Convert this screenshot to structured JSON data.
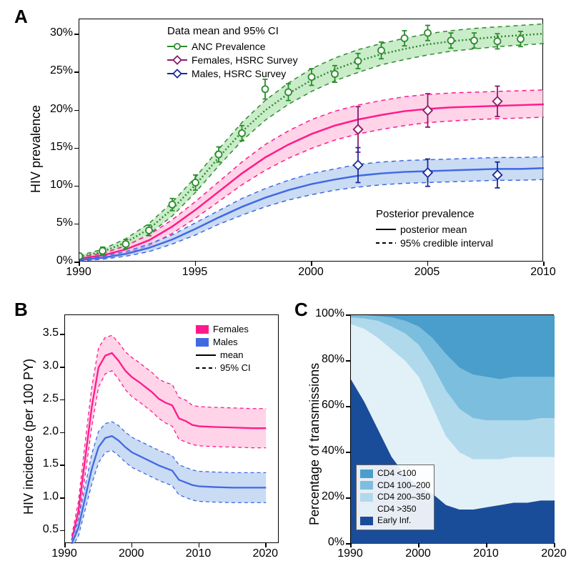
{
  "panels": {
    "A_label": "A",
    "B_label": "B",
    "C_label": "C"
  },
  "colors": {
    "green": "#2e8b2e",
    "green_band": "#a5dfa5",
    "pink": "#ff1a8c",
    "pink_band": "#ffb8d9",
    "blue": "#4169e1",
    "blue_band": "#a6c3ec",
    "cd4_lt100": "#4a9ecb",
    "cd4_100_200": "#7cbedd",
    "cd4_200_350": "#b1d9ec",
    "cd4_gt350": "#e2f1f8",
    "early": "#1a4d99",
    "black": "#000000"
  },
  "panelA": {
    "xlim": [
      1990,
      2010
    ],
    "ylim": [
      0,
      32
    ],
    "xticks": [
      1990,
      1995,
      2000,
      2005,
      2010
    ],
    "xtick_labels": [
      "1990",
      "1995",
      "2000",
      "2005",
      "2010"
    ],
    "yticks": [
      0,
      5,
      10,
      15,
      20,
      25,
      30
    ],
    "ytick_labels": [
      "0%",
      "5%",
      "10%",
      "15%",
      "20%",
      "25%",
      "30%"
    ],
    "ylabel": "HIV prevalence",
    "legend_top_title": "Data mean and 95% CI",
    "legend_anc": "ANC Prevalence",
    "legend_fhs": "Females, HSRC Survey",
    "legend_mhs": "Males, HSRC Survey",
    "legend_post_title": "Posterior prevalence",
    "legend_post_mean": "posterior mean",
    "legend_post_ci": "95% credible interval",
    "anc_data": [
      {
        "x": 1990,
        "y": 0.8,
        "lo": 0.4,
        "hi": 1.2
      },
      {
        "x": 1991,
        "y": 1.5,
        "lo": 1.0,
        "hi": 2.0
      },
      {
        "x": 1992,
        "y": 2.4,
        "lo": 1.8,
        "hi": 3.0
      },
      {
        "x": 1993,
        "y": 4.2,
        "lo": 3.5,
        "hi": 4.9
      },
      {
        "x": 1994,
        "y": 7.6,
        "lo": 6.8,
        "hi": 8.4
      },
      {
        "x": 1995,
        "y": 10.5,
        "lo": 9.5,
        "hi": 11.5
      },
      {
        "x": 1996,
        "y": 14.2,
        "lo": 13.2,
        "hi": 15.2
      },
      {
        "x": 1997,
        "y": 17.0,
        "lo": 16.0,
        "hi": 18.0
      },
      {
        "x": 1998,
        "y": 22.8,
        "lo": 21.5,
        "hi": 24.1
      },
      {
        "x": 1999,
        "y": 22.4,
        "lo": 21.3,
        "hi": 23.5
      },
      {
        "x": 2000,
        "y": 24.4,
        "lo": 23.3,
        "hi": 25.5
      },
      {
        "x": 2001,
        "y": 24.8,
        "lo": 23.7,
        "hi": 25.9
      },
      {
        "x": 2002,
        "y": 26.5,
        "lo": 25.5,
        "hi": 27.5
      },
      {
        "x": 2003,
        "y": 27.9,
        "lo": 26.8,
        "hi": 29.0
      },
      {
        "x": 2004,
        "y": 29.5,
        "lo": 28.5,
        "hi": 30.5
      },
      {
        "x": 2005,
        "y": 30.2,
        "lo": 29.2,
        "hi": 31.2
      },
      {
        "x": 2006,
        "y": 29.2,
        "lo": 28.2,
        "hi": 30.2
      },
      {
        "x": 2007,
        "y": 29.2,
        "lo": 28.2,
        "hi": 30.2
      },
      {
        "x": 2008,
        "y": 29.1,
        "lo": 28.1,
        "hi": 30.1
      },
      {
        "x": 2009,
        "y": 29.4,
        "lo": 28.4,
        "hi": 30.4
      }
    ],
    "fhs_data": [
      {
        "x": 2002,
        "y": 17.5,
        "lo": 14.5,
        "hi": 20.5
      },
      {
        "x": 2005,
        "y": 20.0,
        "lo": 17.8,
        "hi": 22.2
      },
      {
        "x": 2008,
        "y": 21.2,
        "lo": 19.2,
        "hi": 23.2
      }
    ],
    "mhs_data": [
      {
        "x": 2002,
        "y": 12.8,
        "lo": 10.5,
        "hi": 15.1
      },
      {
        "x": 2005,
        "y": 11.8,
        "lo": 10.0,
        "hi": 13.6
      },
      {
        "x": 2008,
        "y": 11.5,
        "lo": 9.8,
        "hi": 13.2
      }
    ],
    "anc_curve": {
      "years": [
        1990,
        1991,
        1992,
        1993,
        1994,
        1995,
        1996,
        1997,
        1998,
        1999,
        2000,
        2001,
        2002,
        2003,
        2004,
        2005,
        2006,
        2007,
        2008,
        2009,
        2010
      ],
      "mean": [
        0.7,
        1.4,
        2.6,
        4.4,
        7.0,
        10.2,
        13.8,
        17.2,
        20.0,
        22.2,
        24.0,
        25.4,
        26.5,
        27.4,
        28.1,
        28.7,
        29.1,
        29.4,
        29.7,
        29.9,
        30.1
      ],
      "lo": [
        0.5,
        1.1,
        2.1,
        3.7,
        6.1,
        9.2,
        12.7,
        16.0,
        18.7,
        20.8,
        22.5,
        23.9,
        25.0,
        26.0,
        26.7,
        27.3,
        27.8,
        28.1,
        28.4,
        28.6,
        28.8
      ],
      "hi": [
        0.9,
        1.7,
        3.1,
        5.1,
        7.9,
        11.2,
        14.9,
        18.4,
        21.3,
        23.6,
        25.5,
        26.9,
        28.0,
        28.8,
        29.5,
        30.1,
        30.5,
        30.8,
        31.0,
        31.2,
        31.4
      ]
    },
    "fem_curve": {
      "years": [
        1990,
        1991,
        1992,
        1993,
        1994,
        1995,
        1996,
        1997,
        1998,
        1999,
        2000,
        2001,
        2002,
        2003,
        2004,
        2005,
        2006,
        2007,
        2008,
        2009,
        2010
      ],
      "mean": [
        0.5,
        0.9,
        1.7,
        2.9,
        4.7,
        6.9,
        9.3,
        11.7,
        13.8,
        15.5,
        16.9,
        18.0,
        18.8,
        19.4,
        19.9,
        20.2,
        20.4,
        20.5,
        20.6,
        20.7,
        20.8
      ],
      "lo": [
        0.3,
        0.6,
        1.2,
        2.2,
        3.8,
        5.8,
        8.0,
        10.2,
        12.1,
        13.7,
        15.0,
        16.1,
        16.9,
        17.5,
        18.0,
        18.4,
        18.6,
        18.8,
        18.9,
        19.0,
        19.1
      ],
      "hi": [
        0.7,
        1.2,
        2.2,
        3.6,
        5.6,
        8.0,
        10.6,
        13.2,
        15.5,
        17.3,
        18.8,
        19.9,
        20.7,
        21.3,
        21.8,
        22.1,
        22.3,
        22.4,
        22.5,
        22.6,
        22.7
      ]
    },
    "mal_curve": {
      "years": [
        1990,
        1991,
        1992,
        1993,
        1994,
        1995,
        1996,
        1997,
        1998,
        1999,
        2000,
        2001,
        2002,
        2003,
        2004,
        2005,
        2006,
        2007,
        2008,
        2009,
        2010
      ],
      "mean": [
        0.3,
        0.6,
        1.1,
        1.9,
        3.0,
        4.4,
        5.9,
        7.3,
        8.5,
        9.5,
        10.3,
        10.9,
        11.4,
        11.7,
        11.9,
        12.0,
        12.1,
        12.2,
        12.3,
        12.3,
        12.4
      ],
      "lo": [
        0.2,
        0.4,
        0.8,
        1.4,
        2.4,
        3.6,
        5.0,
        6.2,
        7.3,
        8.2,
        8.9,
        9.5,
        9.9,
        10.2,
        10.4,
        10.5,
        10.6,
        10.7,
        10.8,
        10.8,
        10.9
      ],
      "hi": [
        0.4,
        0.8,
        1.4,
        2.4,
        3.6,
        5.2,
        6.8,
        8.4,
        9.7,
        10.8,
        11.7,
        12.3,
        12.9,
        13.2,
        13.4,
        13.5,
        13.6,
        13.7,
        13.8,
        13.8,
        13.9
      ]
    }
  },
  "panelB": {
    "xlim": [
      1990,
      2022
    ],
    "ylim": [
      0.3,
      3.8
    ],
    "xticks": [
      1990,
      2000,
      2010,
      2020
    ],
    "xtick_labels": [
      "1990",
      "2000",
      "2010",
      "2020"
    ],
    "yticks": [
      0.5,
      1.0,
      1.5,
      2.0,
      2.5,
      3.0,
      3.5
    ],
    "ytick_labels": [
      "0.5",
      "1.0",
      "1.5",
      "2.0",
      "2.5",
      "3.0",
      "3.5"
    ],
    "ylabel": "HIV incidence (per 100 PY)",
    "legend_fem": "Females",
    "legend_mal": "Males",
    "legend_mean": "mean",
    "legend_ci": "95% CI",
    "fem": {
      "years": [
        1991,
        1992,
        1993,
        1994,
        1995,
        1996,
        1997,
        1998,
        1999,
        2000,
        2001,
        2002,
        2003,
        2004,
        2005,
        2006,
        2007,
        2008,
        2009,
        2010,
        2012,
        2015,
        2018,
        2020
      ],
      "mean": [
        0.35,
        0.8,
        1.6,
        2.4,
        3.0,
        3.18,
        3.22,
        3.1,
        2.95,
        2.85,
        2.78,
        2.7,
        2.62,
        2.52,
        2.46,
        2.42,
        2.22,
        2.18,
        2.12,
        2.1,
        2.09,
        2.08,
        2.07,
        2.07
      ],
      "lo": [
        0.28,
        0.65,
        1.35,
        2.1,
        2.7,
        2.9,
        2.95,
        2.82,
        2.66,
        2.55,
        2.48,
        2.4,
        2.32,
        2.22,
        2.15,
        2.1,
        1.9,
        1.86,
        1.82,
        1.8,
        1.79,
        1.78,
        1.77,
        1.77
      ],
      "hi": [
        0.42,
        0.95,
        1.85,
        2.7,
        3.3,
        3.46,
        3.49,
        3.38,
        3.24,
        3.15,
        3.08,
        3.0,
        2.92,
        2.82,
        2.77,
        2.74,
        2.54,
        2.5,
        2.42,
        2.4,
        2.39,
        2.38,
        2.37,
        2.37
      ]
    },
    "mal": {
      "years": [
        1991,
        1992,
        1993,
        1994,
        1995,
        1996,
        1997,
        1998,
        1999,
        2000,
        2001,
        2002,
        2003,
        2004,
        2005,
        2006,
        2007,
        2008,
        2009,
        2010,
        2012,
        2015,
        2018,
        2020
      ],
      "mean": [
        0.3,
        0.55,
        1.0,
        1.45,
        1.78,
        1.92,
        1.95,
        1.88,
        1.78,
        1.7,
        1.65,
        1.6,
        1.55,
        1.5,
        1.46,
        1.42,
        1.28,
        1.24,
        1.2,
        1.18,
        1.17,
        1.16,
        1.16,
        1.16
      ],
      "lo": [
        0.24,
        0.42,
        0.82,
        1.22,
        1.54,
        1.7,
        1.73,
        1.65,
        1.55,
        1.47,
        1.42,
        1.37,
        1.32,
        1.27,
        1.23,
        1.19,
        1.05,
        1.01,
        0.97,
        0.95,
        0.94,
        0.93,
        0.93,
        0.93
      ],
      "hi": [
        0.36,
        0.68,
        1.18,
        1.68,
        2.02,
        2.14,
        2.17,
        2.11,
        2.01,
        1.93,
        1.88,
        1.83,
        1.78,
        1.73,
        1.69,
        1.65,
        1.51,
        1.47,
        1.43,
        1.41,
        1.4,
        1.39,
        1.39,
        1.39
      ]
    }
  },
  "panelC": {
    "xlim": [
      1990,
      2020
    ],
    "ylim": [
      0,
      100
    ],
    "xticks": [
      1990,
      2000,
      2010,
      2020
    ],
    "xtick_labels": [
      "1990",
      "2000",
      "2010",
      "2020"
    ],
    "yticks": [
      0,
      20,
      40,
      60,
      80,
      100
    ],
    "ytick_labels": [
      "0%",
      "20%",
      "40%",
      "60%",
      "80%",
      "100%"
    ],
    "ylabel": "Percentage of transmissions",
    "legend": {
      "cd4_lt100": "CD4 <100",
      "cd4_100_200": "CD4 100–200",
      "cd4_200_350": "CD4 200–350",
      "cd4_gt350": "CD4 >350",
      "early": "Early Inf."
    },
    "years": [
      1990,
      1992,
      1994,
      1996,
      1998,
      2000,
      2002,
      2004,
      2006,
      2008,
      2010,
      2012,
      2014,
      2016,
      2018,
      2020
    ],
    "stack": {
      "early": [
        72,
        62,
        50,
        38,
        30,
        25,
        22,
        17,
        15,
        15,
        16,
        17,
        18,
        18,
        19,
        19
      ],
      "gt350": [
        96,
        94,
        90,
        85,
        80,
        73,
        60,
        47,
        40,
        37,
        37,
        37,
        38,
        38,
        38,
        38
      ],
      "c200_350": [
        99,
        98.5,
        97.5,
        95,
        92,
        87,
        78,
        67,
        59,
        55,
        54,
        54,
        54,
        54,
        55,
        55
      ],
      "c100_200": [
        100,
        100,
        99.5,
        99,
        97.5,
        95,
        90,
        83,
        77,
        74,
        73,
        72,
        73,
        73,
        73,
        73
      ],
      "lt100": [
        100,
        100,
        100,
        100,
        100,
        100,
        100,
        100,
        100,
        100,
        100,
        100,
        100,
        100,
        100,
        100
      ]
    }
  }
}
